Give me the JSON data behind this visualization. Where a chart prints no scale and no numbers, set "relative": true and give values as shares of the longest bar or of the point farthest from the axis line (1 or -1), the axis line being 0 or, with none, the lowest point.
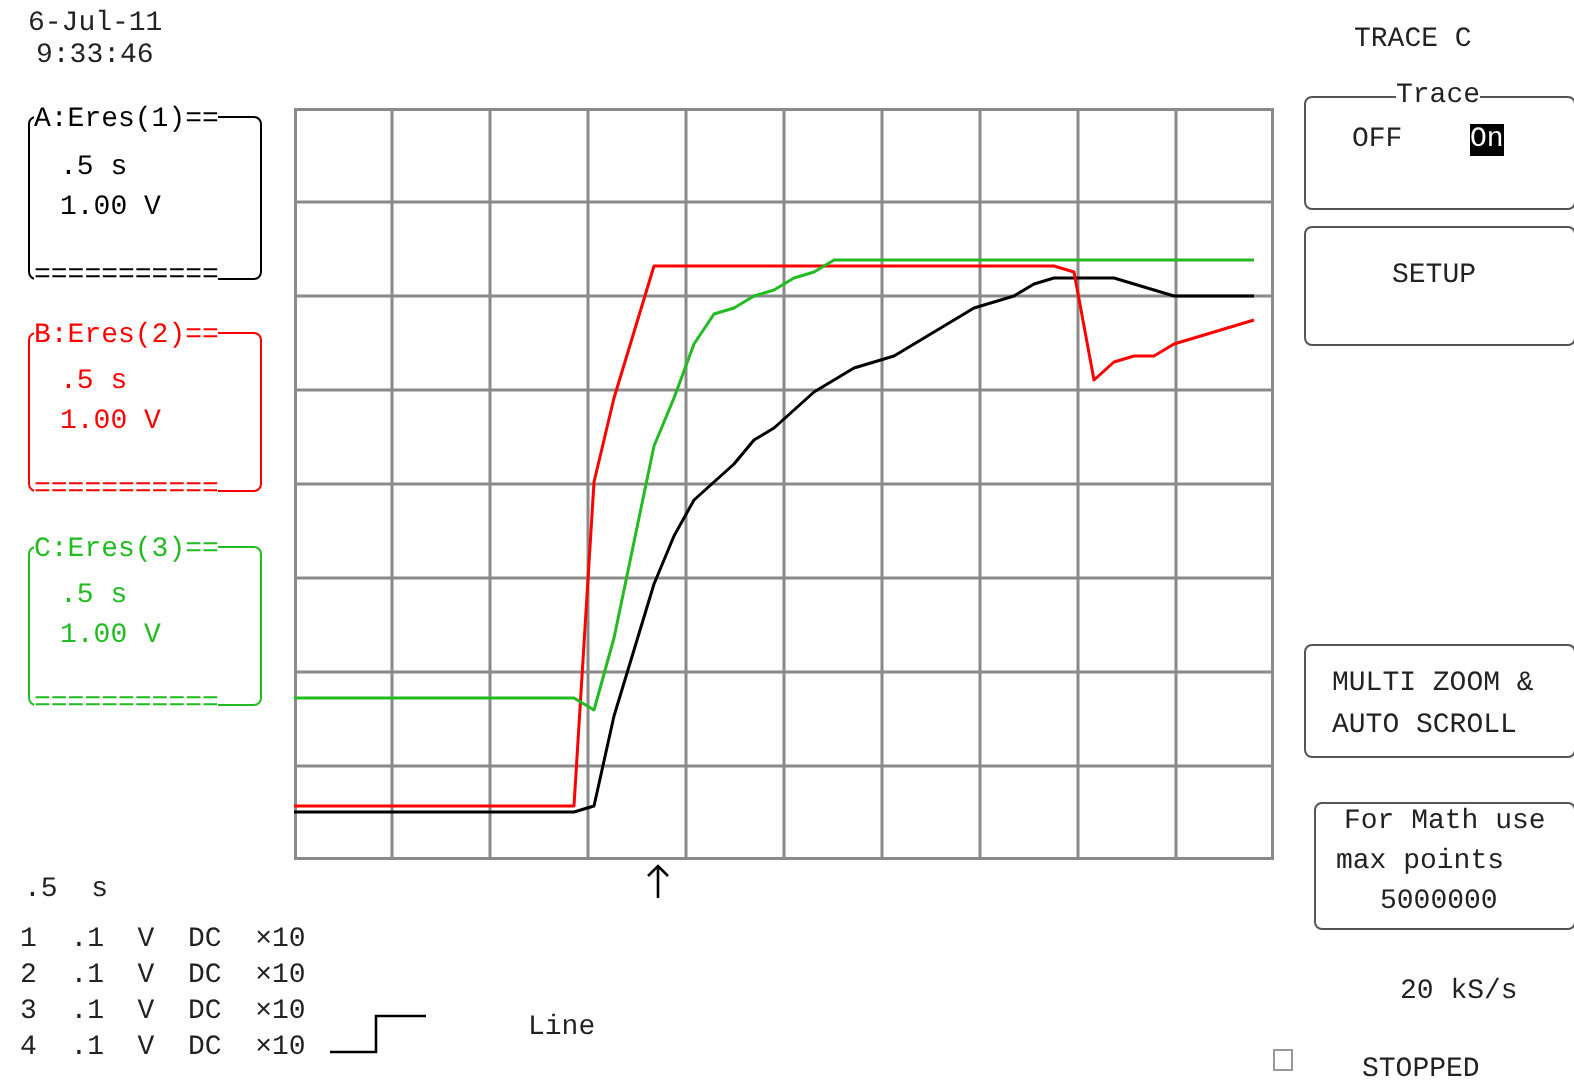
{
  "chart_data": {
    "type": "line",
    "relative": true,
    "grid": true,
    "legend": false,
    "marker": "none",
    "line_style": "solid",
    "categories": [
      null,
      null,
      null,
      null,
      null,
      null,
      null,
      null,
      null,
      null,
      null,
      null,
      null,
      null,
      null,
      null,
      null,
      null,
      null,
      null,
      null,
      null,
      null,
      null,
      null,
      null,
      null,
      null,
      null,
      null,
      null,
      null,
      null,
      null,
      null,
      null,
      null,
      null,
      null,
      null,
      null,
      null,
      null,
      null,
      null,
      null,
      null,
      null,
      null
    ],
    "series": [
      {
        "color": "#000000",
        "values": [
          0.08,
          0.08,
          0.08,
          0.08,
          0.08,
          0.08,
          0.08,
          0.08,
          0.08,
          0.08,
          0.08,
          0.08,
          0.08,
          0.08,
          0.08,
          0.09,
          0.24,
          0.35,
          0.46,
          0.54,
          0.6,
          0.63,
          0.66,
          0.7,
          0.72,
          0.75,
          0.78,
          0.8,
          0.82,
          0.83,
          0.84,
          0.86,
          0.88,
          0.9,
          0.92,
          0.93,
          0.94,
          0.96,
          0.97,
          0.97,
          0.97,
          0.97,
          0.96,
          0.95,
          0.94,
          0.94,
          0.94,
          0.94,
          0.94
        ]
      },
      {
        "color": "#ff0000",
        "values": [
          0.09,
          0.09,
          0.09,
          0.09,
          0.09,
          0.09,
          0.09,
          0.09,
          0.09,
          0.09,
          0.09,
          0.09,
          0.09,
          0.09,
          0.09,
          0.63,
          0.77,
          0.88,
          0.99,
          0.99,
          0.99,
          0.99,
          0.99,
          0.99,
          0.99,
          0.99,
          0.99,
          0.99,
          0.99,
          0.99,
          0.99,
          0.99,
          0.99,
          0.99,
          0.99,
          0.99,
          0.99,
          0.99,
          0.99,
          0.98,
          0.8,
          0.83,
          0.84,
          0.84,
          0.86,
          0.87,
          0.88,
          0.89,
          0.9
        ]
      },
      {
        "color": "#22bb22",
        "values": [
          0.27,
          0.27,
          0.27,
          0.27,
          0.27,
          0.27,
          0.27,
          0.27,
          0.27,
          0.27,
          0.27,
          0.27,
          0.27,
          0.27,
          0.27,
          0.25,
          0.37,
          0.53,
          0.69,
          0.77,
          0.86,
          0.91,
          0.92,
          0.94,
          0.95,
          0.97,
          0.98,
          1,
          1,
          1,
          1,
          1,
          1,
          1,
          1,
          1,
          1,
          1,
          1,
          1,
          1,
          1,
          1,
          1,
          1,
          1,
          1,
          1,
          1
        ]
      }
    ],
    "annotations": [
      "6-Jul-11",
      "9:33:46",
      "A:Eres(1)==",
      ".5 s",
      "1.00 V",
      "===========",
      "B:Eres(2)==",
      ".5 s",
      "1.00 V",
      "===========",
      "C:Eres(3)==",
      ".5 s",
      "1.00 V",
      "===========",
      ".5  s",
      "1  .1  V  DC  ×10",
      "2  .1  V  DC  ×10",
      "3  .1  V  DC  ×10",
      "4  .1  V  DC  ×10",
      "Line",
      "TRACE C",
      "Trace",
      "OFF",
      "On",
      "SETUP",
      "MULTI ZOOM &",
      "AUTO SCROLL",
      "For Math use",
      "max points",
      "5000000",
      "20 kS/s",
      "STOPPED"
    ]
  }
}
